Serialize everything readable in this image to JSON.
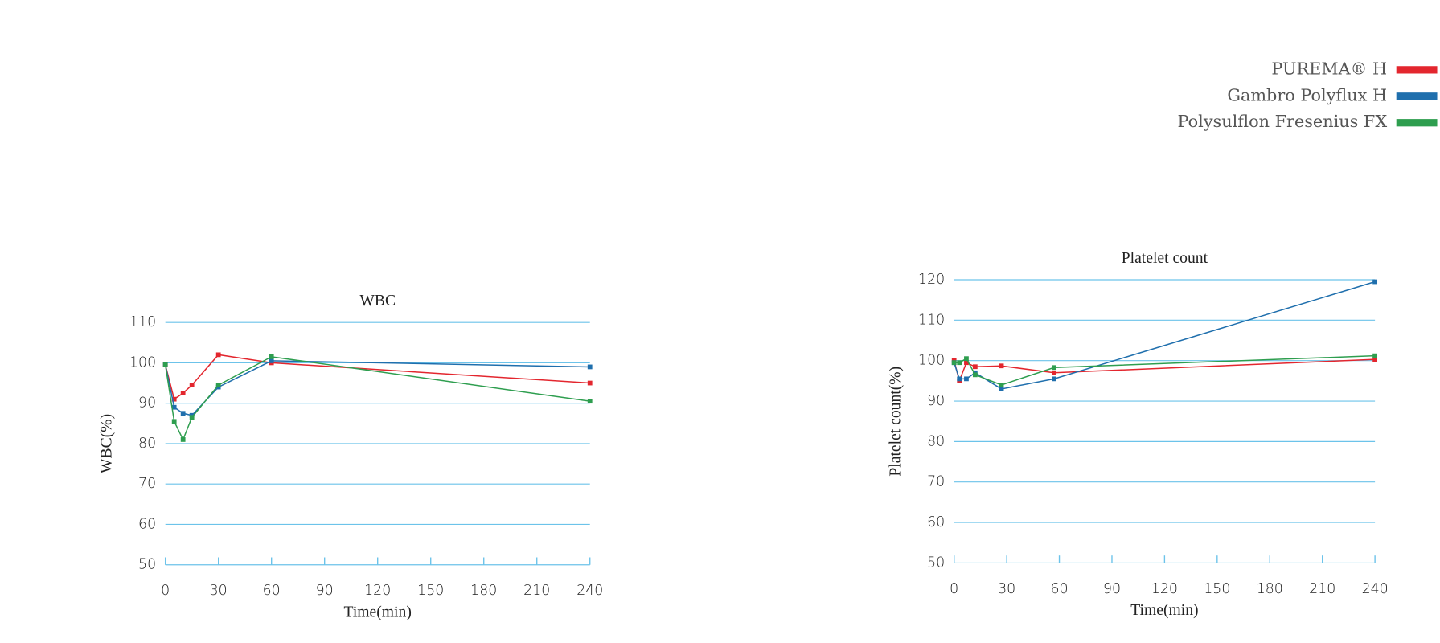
{
  "chart_data": [
    {
      "type": "line",
      "title": "WBC",
      "x_label": "Time(min)",
      "y_label": "WBC(%)",
      "x": [
        0,
        5,
        10,
        15,
        30,
        60,
        240
      ],
      "xlim": [
        0,
        240
      ],
      "xticks": [
        0,
        30,
        60,
        90,
        120,
        150,
        180,
        210,
        240
      ],
      "ylim": [
        50,
        110
      ],
      "yticks": [
        50,
        60,
        70,
        80,
        90,
        100,
        110
      ],
      "grid": true,
      "legend": "upper right",
      "series": [
        {
          "name": "PUREMA® H",
          "color": "#e3262e",
          "values": [
            99.5,
            91,
            92.5,
            94.5,
            102,
            100,
            95
          ]
        },
        {
          "name": "Gambro Polyflux  H",
          "color": "#1f6fad",
          "values": [
            99.5,
            89,
            87.5,
            87,
            94,
            100.5,
            99
          ]
        },
        {
          "name": "Polysulflon Fresenius  FX",
          "color": "#2e9e4f",
          "values": [
            99.5,
            85.5,
            81,
            86.5,
            94.5,
            101.5,
            90.5
          ]
        }
      ]
    },
    {
      "type": "line",
      "title": "Platelet count",
      "x_label": "Time(min)",
      "y_label": "Platelet count(%)",
      "x": [
        0,
        3,
        7,
        12,
        27,
        57,
        240
      ],
      "xlim": [
        0,
        240
      ],
      "xticks": [
        0,
        30,
        60,
        90,
        120,
        150,
        180,
        210,
        240
      ],
      "ylim": [
        50,
        120
      ],
      "yticks": [
        50,
        60,
        70,
        80,
        90,
        100,
        110,
        120
      ],
      "grid": true,
      "series": [
        {
          "color": "#e3262e",
          "values": [
            100,
            95,
            99.5,
            98.5,
            98.7,
            97,
            100.3
          ]
        },
        {
          "color": "#1f6fad",
          "values": [
            99.5,
            95.5,
            95.5,
            97,
            93,
            95.5,
            119.5
          ]
        },
        {
          "color": "#2e9e4f",
          "values": [
            99.5,
            99.5,
            100.5,
            96.5,
            94,
            98.3,
            101.2
          ]
        }
      ]
    }
  ]
}
